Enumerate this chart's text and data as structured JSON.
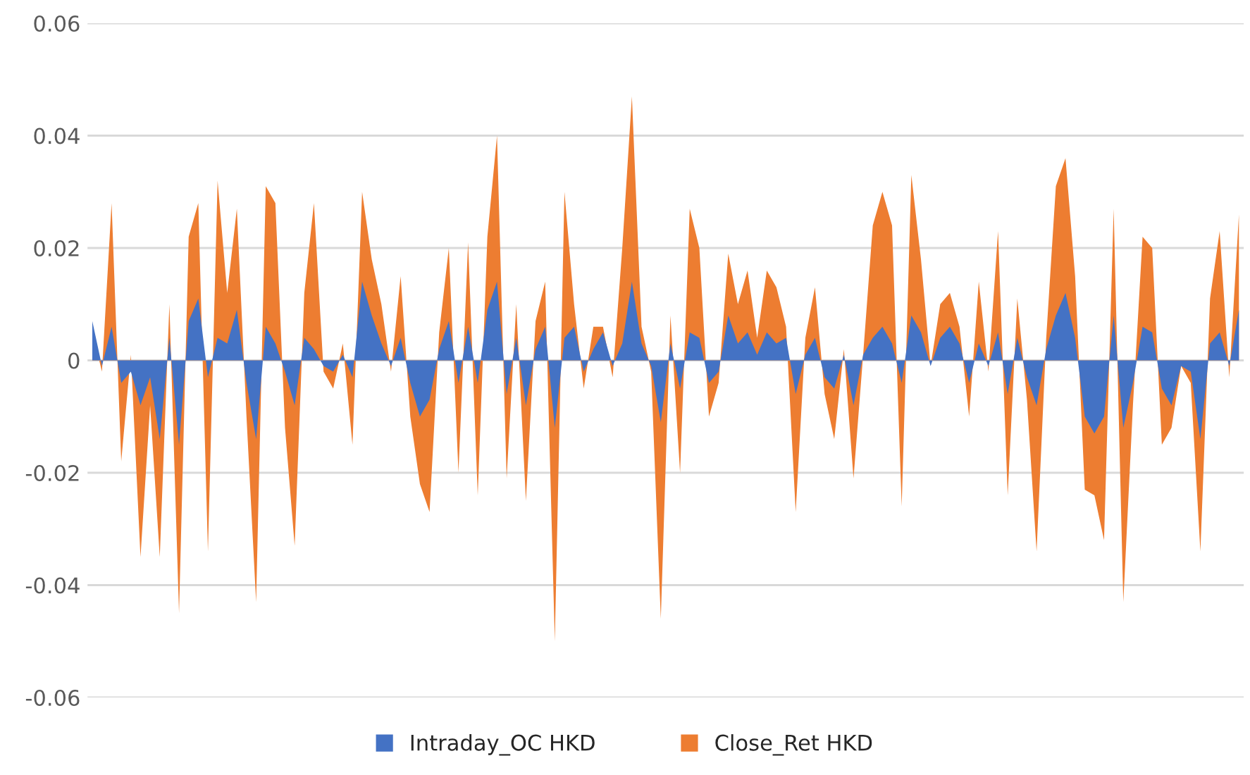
{
  "chart_data": {
    "type": "area",
    "categories": [
      null,
      null,
      null,
      null,
      null,
      null,
      null,
      null,
      null,
      null,
      null,
      null,
      null,
      null,
      null,
      null,
      null,
      null,
      null,
      null,
      null,
      null,
      null,
      null,
      null,
      null,
      null,
      null,
      null,
      null,
      null,
      null,
      null,
      null,
      null,
      null,
      null,
      null,
      null,
      null,
      null,
      null,
      null,
      null,
      null,
      null,
      null,
      null,
      null,
      null,
      null,
      null,
      null,
      null,
      null,
      null,
      null,
      null,
      null,
      null,
      null,
      null,
      null,
      null,
      null,
      null,
      null,
      null,
      null,
      null,
      null,
      null,
      null,
      null,
      null,
      null,
      null,
      null,
      null,
      null,
      null,
      null,
      null,
      null,
      null,
      null,
      null,
      null,
      null,
      null,
      null,
      null,
      null,
      null,
      null,
      null,
      null,
      null,
      null,
      null,
      null,
      null,
      null,
      null,
      null,
      null,
      null,
      null,
      null,
      null,
      null,
      null,
      null,
      null,
      null,
      null,
      null,
      null,
      null,
      null
    ],
    "series": [
      {
        "name": "Intraday_OC HKD",
        "color": "#4472c4",
        "values": [
          0.007,
          -0.001,
          0.006,
          -0.004,
          -0.002,
          -0.008,
          -0.003,
          -0.014,
          0.004,
          -0.015,
          0.007,
          0.011,
          -0.003,
          0.004,
          0.003,
          0.009,
          -0.004,
          -0.014,
          0.006,
          0.003,
          -0.002,
          -0.008,
          0.004,
          0.002,
          -0.001,
          -0.002,
          0.001,
          -0.003,
          0.014,
          0.008,
          0.003,
          -0.001,
          0.004,
          -0.004,
          -0.01,
          -0.007,
          0.002,
          0.007,
          -0.004,
          0.006,
          -0.004,
          0.009,
          0.014,
          -0.006,
          0.004,
          -0.008,
          0.002,
          0.006,
          -0.012,
          0.004,
          0.006,
          -0.002,
          0.002,
          0.005,
          -0.001,
          0.003,
          0.014,
          0.003,
          -0.001,
          -0.011,
          0.003,
          -0.005,
          0.005,
          0.004,
          -0.004,
          -0.002,
          0.008,
          0.003,
          0.005,
          0.001,
          0.005,
          0.003,
          0.004,
          -0.006,
          0.001,
          0.004,
          -0.003,
          -0.005,
          0.001,
          -0.008,
          0.001,
          0.004,
          0.006,
          0.003,
          -0.004,
          0.008,
          0.005,
          -0.001,
          0.004,
          0.006,
          0.003,
          -0.004,
          0.003,
          -0.001,
          0.005,
          -0.006,
          0.004,
          -0.003,
          -0.008,
          0.002,
          0.008,
          0.012,
          0.004,
          -0.01,
          -0.013,
          -0.01,
          0.008,
          -0.012,
          -0.004,
          0.006,
          0.005,
          -0.005,
          -0.008,
          -0.001,
          -0.002,
          -0.014,
          0.003,
          0.005,
          -0.001,
          0.009
        ]
      },
      {
        "name": "Close_Ret HKD",
        "color": "#ed7d31",
        "values": [
          0.005,
          -0.002,
          0.028,
          -0.018,
          0.001,
          -0.035,
          -0.008,
          -0.035,
          0.01,
          -0.045,
          0.022,
          0.028,
          -0.034,
          0.032,
          0.012,
          0.027,
          -0.01,
          -0.043,
          0.031,
          0.028,
          -0.012,
          -0.033,
          0.012,
          0.028,
          -0.002,
          -0.005,
          0.003,
          -0.015,
          0.03,
          0.018,
          0.01,
          -0.002,
          0.015,
          -0.01,
          -0.022,
          -0.027,
          0.005,
          0.02,
          -0.02,
          0.021,
          -0.024,
          0.022,
          0.04,
          -0.021,
          0.01,
          -0.025,
          0.007,
          0.014,
          -0.05,
          0.03,
          0.01,
          -0.005,
          0.006,
          0.006,
          -0.003,
          0.02,
          0.047,
          0.006,
          -0.002,
          -0.046,
          0.008,
          -0.02,
          0.027,
          0.02,
          -0.01,
          -0.004,
          0.019,
          0.01,
          0.016,
          0.004,
          0.016,
          0.013,
          0.006,
          -0.027,
          0.004,
          0.013,
          -0.006,
          -0.014,
          0.002,
          -0.021,
          0.001,
          0.024,
          0.03,
          0.024,
          -0.026,
          0.033,
          0.018,
          -0.001,
          0.01,
          0.012,
          0.006,
          -0.01,
          0.014,
          -0.002,
          0.023,
          -0.024,
          0.011,
          -0.007,
          -0.034,
          0.004,
          0.031,
          0.036,
          0.015,
          -0.023,
          -0.024,
          -0.032,
          0.027,
          -0.043,
          -0.008,
          0.022,
          0.02,
          -0.015,
          -0.012,
          -0.001,
          -0.004,
          -0.034,
          0.011,
          0.023,
          -0.003,
          0.026
        ]
      }
    ],
    "ylim": [
      -0.06,
      0.06
    ],
    "yticks": [
      {
        "value": -0.06,
        "label": "-0.06"
      },
      {
        "value": -0.04,
        "label": "-0.04"
      },
      {
        "value": -0.02,
        "label": "-0.02"
      },
      0,
      0.02,
      0.04,
      0.06
    ],
    "grid": "y",
    "legend": "bottom"
  }
}
